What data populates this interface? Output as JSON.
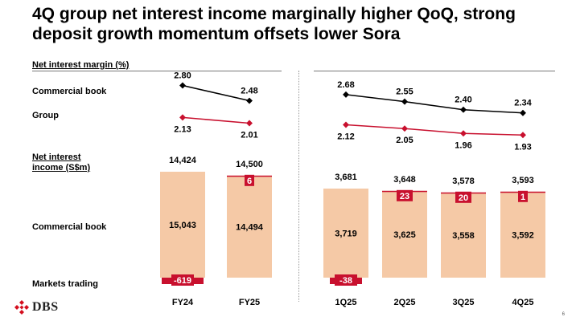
{
  "title": {
    "line1": "4Q group net interest income marginally higher QoQ, strong",
    "line2": "deposit growth momentum offsets lower Sora"
  },
  "labels": {
    "nim_header": "Net interest margin (%)",
    "nim_commercial": "Commercial book",
    "nim_group": "Group",
    "nii_header_1": "Net interest",
    "nii_header_2": "income (S$m)",
    "nii_commercial": "Commercial book",
    "nii_markets": "Markets trading"
  },
  "logo": {
    "text": "DBS",
    "icon": "dbs-logo-icon"
  },
  "page_number": "6",
  "colors": {
    "bar": "#f5c9a6",
    "markets": "#c8102e",
    "commercial_line": "#000000",
    "group_line": "#c8102e"
  },
  "chart_data": [
    {
      "type": "line",
      "title": "Net interest margin (%) - annual",
      "categories": [
        "FY24",
        "FY25"
      ],
      "series": [
        {
          "name": "Commercial book",
          "values": [
            2.8,
            2.48
          ],
          "labels": [
            "2.80",
            "2.48"
          ]
        },
        {
          "name": "Group",
          "values": [
            2.13,
            2.01
          ],
          "labels": [
            "2.13",
            "2.01"
          ]
        }
      ],
      "ylim": [
        1.8,
        3.0
      ]
    },
    {
      "type": "line",
      "title": "Net interest margin (%) - quarterly",
      "categories": [
        "1Q25",
        "2Q25",
        "3Q25",
        "4Q25"
      ],
      "series": [
        {
          "name": "Commercial book",
          "values": [
            2.68,
            2.55,
            2.4,
            2.34
          ],
          "labels": [
            "2.68",
            "2.55",
            "2.40",
            "2.34"
          ]
        },
        {
          "name": "Group",
          "values": [
            2.12,
            2.05,
            1.96,
            1.93
          ],
          "labels": [
            "2.12",
            "2.05",
            "1.96",
            "1.93"
          ]
        }
      ],
      "ylim": [
        1.8,
        3.0
      ]
    },
    {
      "type": "bar",
      "title": "Net interest income (S$m) - annual",
      "categories": [
        "FY24",
        "FY25"
      ],
      "totals": [
        14424,
        14500
      ],
      "total_labels": [
        "14,424",
        "14,500"
      ],
      "series": [
        {
          "name": "Commercial book",
          "values": [
            15043,
            14494
          ],
          "labels": [
            "15,043",
            "14,494"
          ]
        },
        {
          "name": "Markets trading",
          "values": [
            -619,
            6
          ],
          "labels": [
            "-619",
            "6"
          ]
        }
      ],
      "ylim": [
        -1000,
        16000
      ]
    },
    {
      "type": "bar",
      "title": "Net interest income (S$m) - quarterly",
      "categories": [
        "1Q25",
        "2Q25",
        "3Q25",
        "4Q25"
      ],
      "totals": [
        3681,
        3648,
        3578,
        3593
      ],
      "total_labels": [
        "3,681",
        "3,648",
        "3,578",
        "3,593"
      ],
      "series": [
        {
          "name": "Commercial book",
          "values": [
            3719,
            3625,
            3558,
            3592
          ],
          "labels": [
            "3,719",
            "3,625",
            "3,558",
            "3,592"
          ]
        },
        {
          "name": "Markets trading",
          "values": [
            -38,
            23,
            20,
            1
          ],
          "labels": [
            "-38",
            "23",
            "20",
            "1"
          ]
        }
      ],
      "ylim": [
        -250,
        4000
      ]
    }
  ]
}
